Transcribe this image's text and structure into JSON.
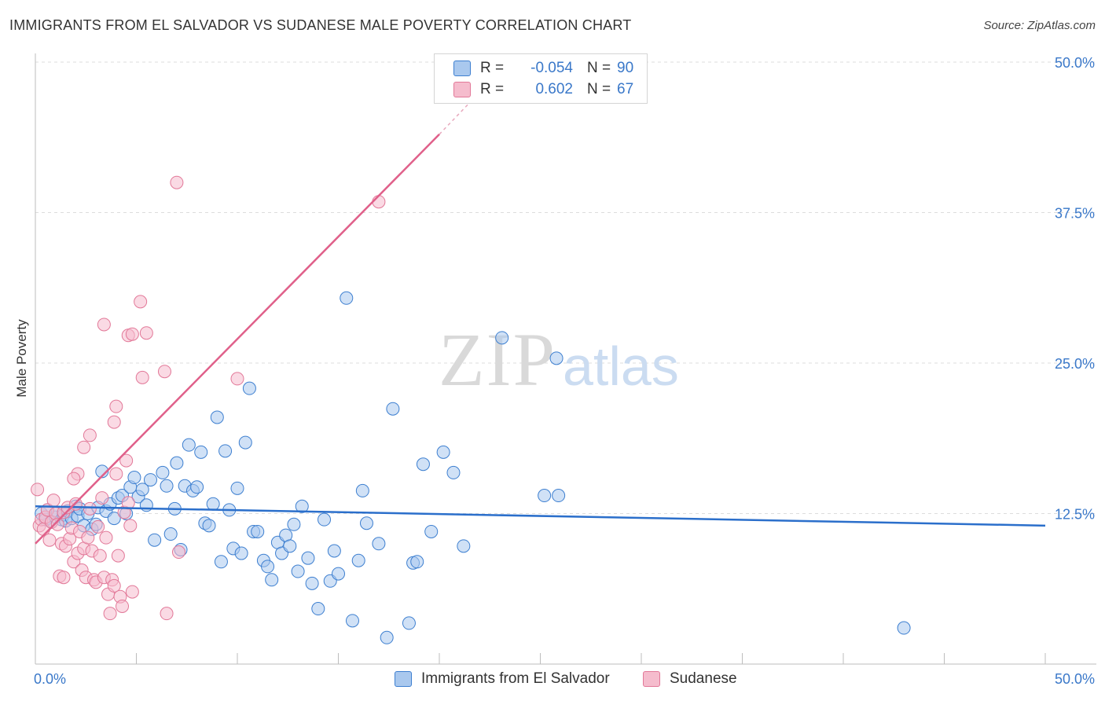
{
  "header": {
    "title": "IMMIGRANTS FROM EL SALVADOR VS SUDANESE MALE POVERTY CORRELATION CHART",
    "source": "Source: ZipAtlas.com"
  },
  "legend": {
    "series": [
      {
        "r_label": "R =",
        "r_value": "-0.054",
        "n_label": "N =",
        "n_value": "90"
      },
      {
        "r_label": "R =",
        "r_value": "0.602",
        "n_label": "N =",
        "n_value": "67"
      }
    ]
  },
  "watermark": {
    "zip": "ZIP",
    "atlas": "atlas"
  },
  "colors": {
    "blue_fill": "#a9c8ee",
    "blue_stroke": "#3d7fd0",
    "blue_line": "#2b6fcb",
    "pink_fill": "#f5bccd",
    "pink_stroke": "#e27898",
    "pink_line": "#e0608a",
    "grid": "#dddddd",
    "tick_text": "#3a78c9"
  },
  "chart_data": {
    "type": "scatter",
    "title": "IMMIGRANTS FROM EL SALVADOR VS SUDANESE MALE POVERTY CORRELATION CHART",
    "xlabel": "",
    "ylabel": "Male Poverty",
    "xlim": [
      0,
      50
    ],
    "ylim": [
      0,
      50
    ],
    "x_tick_labels": [
      "0.0%",
      "50.0%"
    ],
    "y_ticks": [
      12.5,
      25.0,
      37.5,
      50.0
    ],
    "y_tick_labels": [
      "12.5%",
      "25.0%",
      "37.5%",
      "50.0%"
    ],
    "series": [
      {
        "name": "Immigrants from El Salvador",
        "r": -0.054,
        "n": 90,
        "trend": {
          "x": [
            0,
            50
          ],
          "y": [
            13.1,
            11.5
          ]
        },
        "points": [
          [
            0.3,
            12.5
          ],
          [
            0.5,
            12.0
          ],
          [
            0.6,
            12.8
          ],
          [
            0.8,
            11.8
          ],
          [
            1.0,
            12.2
          ],
          [
            1.1,
            12.6
          ],
          [
            1.3,
            12.0
          ],
          [
            1.4,
            12.4
          ],
          [
            1.5,
            11.9
          ],
          [
            1.6,
            12.7
          ],
          [
            1.8,
            12.1
          ],
          [
            2.0,
            13.1
          ],
          [
            2.1,
            12.3
          ],
          [
            2.2,
            12.9
          ],
          [
            2.4,
            11.5
          ],
          [
            2.6,
            12.5
          ],
          [
            2.8,
            11.2
          ],
          [
            3.0,
            11.6
          ],
          [
            3.1,
            13.0
          ],
          [
            3.3,
            16.0
          ],
          [
            3.5,
            12.7
          ],
          [
            3.7,
            13.3
          ],
          [
            3.9,
            12.1
          ],
          [
            4.1,
            13.8
          ],
          [
            4.3,
            14.0
          ],
          [
            4.5,
            12.5
          ],
          [
            4.7,
            14.7
          ],
          [
            4.9,
            15.5
          ],
          [
            5.1,
            13.9
          ],
          [
            5.3,
            14.5
          ],
          [
            5.5,
            13.2
          ],
          [
            5.7,
            15.3
          ],
          [
            5.9,
            10.3
          ],
          [
            6.3,
            15.9
          ],
          [
            6.5,
            14.8
          ],
          [
            6.7,
            10.8
          ],
          [
            6.9,
            12.9
          ],
          [
            7.0,
            16.7
          ],
          [
            7.2,
            9.5
          ],
          [
            7.4,
            14.8
          ],
          [
            7.6,
            18.2
          ],
          [
            7.8,
            14.4
          ],
          [
            8.0,
            14.7
          ],
          [
            8.2,
            17.6
          ],
          [
            8.4,
            11.7
          ],
          [
            8.6,
            11.5
          ],
          [
            8.8,
            13.3
          ],
          [
            9.0,
            20.5
          ],
          [
            9.2,
            8.5
          ],
          [
            9.4,
            17.7
          ],
          [
            9.6,
            12.8
          ],
          [
            9.8,
            9.6
          ],
          [
            10.0,
            14.6
          ],
          [
            10.2,
            9.2
          ],
          [
            10.4,
            18.4
          ],
          [
            10.6,
            22.9
          ],
          [
            10.8,
            11.0
          ],
          [
            11.0,
            11.0
          ],
          [
            11.3,
            8.6
          ],
          [
            11.5,
            8.1
          ],
          [
            11.7,
            7.0
          ],
          [
            12.0,
            10.1
          ],
          [
            12.2,
            9.2
          ],
          [
            12.4,
            10.7
          ],
          [
            12.6,
            9.8
          ],
          [
            12.8,
            11.6
          ],
          [
            13.0,
            7.7
          ],
          [
            13.2,
            13.1
          ],
          [
            13.5,
            8.8
          ],
          [
            13.7,
            6.7
          ],
          [
            14.0,
            4.6
          ],
          [
            14.3,
            12.0
          ],
          [
            14.6,
            6.9
          ],
          [
            14.8,
            9.4
          ],
          [
            15.0,
            7.5
          ],
          [
            15.4,
            30.4
          ],
          [
            15.7,
            3.6
          ],
          [
            16.0,
            8.6
          ],
          [
            16.2,
            14.4
          ],
          [
            16.4,
            11.7
          ],
          [
            17.0,
            10.0
          ],
          [
            17.4,
            2.2
          ],
          [
            17.7,
            21.2
          ],
          [
            18.5,
            3.4
          ],
          [
            18.7,
            8.4
          ],
          [
            18.9,
            8.5
          ],
          [
            19.2,
            16.6
          ],
          [
            19.6,
            11.0
          ],
          [
            20.2,
            17.6
          ],
          [
            20.7,
            15.9
          ],
          [
            21.2,
            9.8
          ],
          [
            23.1,
            27.1
          ],
          [
            25.8,
            25.4
          ],
          [
            25.2,
            14.0
          ],
          [
            25.9,
            14.0
          ],
          [
            43.0,
            3.0
          ]
        ]
      },
      {
        "name": "Sudanese",
        "r": 0.602,
        "n": 67,
        "trend": {
          "x": [
            0,
            20
          ],
          "y": [
            10.0,
            44.0
          ],
          "dashed_extension": {
            "x": [
              20,
              22
            ],
            "y": [
              44.0,
              47.5
            ]
          }
        },
        "points": [
          [
            0.1,
            14.5
          ],
          [
            0.2,
            11.5
          ],
          [
            0.3,
            12.0
          ],
          [
            0.4,
            11.2
          ],
          [
            0.5,
            12.2
          ],
          [
            0.6,
            12.8
          ],
          [
            0.7,
            10.3
          ],
          [
            0.8,
            11.8
          ],
          [
            0.9,
            13.6
          ],
          [
            1.0,
            12.5
          ],
          [
            1.1,
            11.6
          ],
          [
            1.2,
            7.3
          ],
          [
            1.3,
            10.0
          ],
          [
            1.4,
            12.6
          ],
          [
            1.5,
            9.8
          ],
          [
            1.6,
            13.0
          ],
          [
            1.7,
            10.4
          ],
          [
            1.8,
            11.3
          ],
          [
            1.9,
            8.5
          ],
          [
            2.0,
            13.3
          ],
          [
            2.1,
            9.2
          ],
          [
            2.2,
            11.0
          ],
          [
            2.3,
            7.8
          ],
          [
            2.4,
            9.6
          ],
          [
            2.5,
            7.2
          ],
          [
            2.6,
            10.5
          ],
          [
            2.7,
            12.9
          ],
          [
            2.8,
            9.4
          ],
          [
            2.9,
            7.0
          ],
          [
            3.0,
            6.8
          ],
          [
            3.1,
            11.4
          ],
          [
            3.2,
            9.0
          ],
          [
            3.3,
            13.8
          ],
          [
            3.4,
            7.2
          ],
          [
            3.5,
            10.5
          ],
          [
            3.6,
            5.8
          ],
          [
            3.7,
            4.2
          ],
          [
            3.8,
            7.0
          ],
          [
            3.9,
            6.5
          ],
          [
            4.0,
            15.8
          ],
          [
            4.1,
            9.0
          ],
          [
            4.2,
            5.6
          ],
          [
            4.3,
            4.8
          ],
          [
            4.4,
            12.6
          ],
          [
            4.5,
            16.9
          ],
          [
            4.6,
            13.4
          ],
          [
            4.7,
            11.5
          ],
          [
            4.8,
            6.0
          ],
          [
            1.4,
            7.2
          ],
          [
            2.1,
            15.8
          ],
          [
            2.4,
            18.0
          ],
          [
            2.7,
            19.0
          ],
          [
            1.9,
            15.4
          ],
          [
            3.4,
            28.2
          ],
          [
            3.9,
            20.1
          ],
          [
            4.0,
            21.4
          ],
          [
            4.6,
            27.3
          ],
          [
            4.8,
            27.4
          ],
          [
            5.2,
            30.1
          ],
          [
            5.3,
            23.8
          ],
          [
            5.5,
            27.5
          ],
          [
            6.4,
            24.3
          ],
          [
            6.5,
            4.2
          ],
          [
            7.0,
            40.0
          ],
          [
            7.1,
            9.3
          ],
          [
            10.0,
            23.7
          ],
          [
            17.0,
            38.4
          ]
        ]
      }
    ],
    "legend_position": "top-center"
  }
}
